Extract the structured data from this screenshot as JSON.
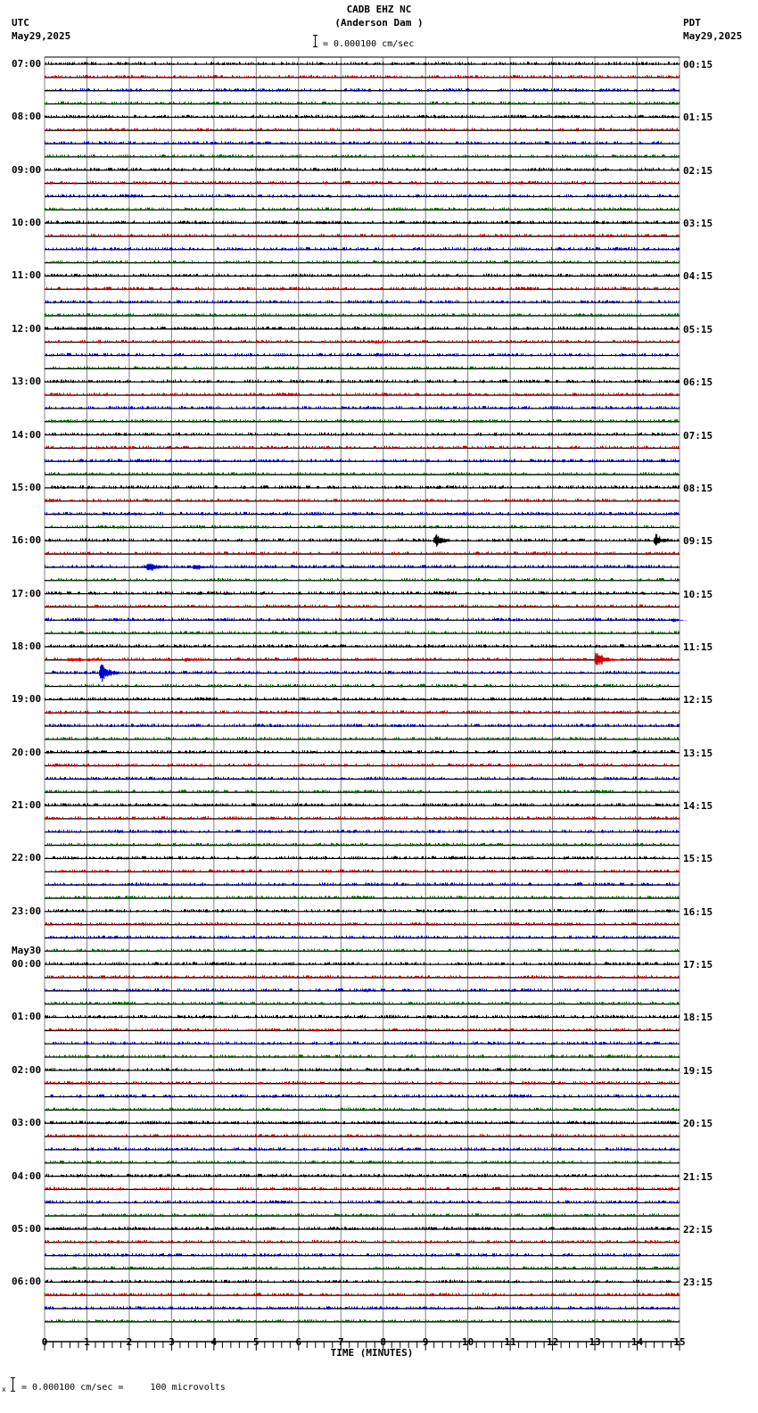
{
  "header": {
    "station": "CADB EHZ NC",
    "location": "(Anderson Dam )",
    "scale_text": "= 0.000100 cm/sec",
    "left_tz": "UTC",
    "left_date": "May29,2025",
    "right_tz": "PDT",
    "right_date": "May29,2025"
  },
  "footer": {
    "scale_text": "= 0.000100 cm/sec =     100 microvolts",
    "prefix": "x"
  },
  "colors": {
    "trace_cycle": [
      "#000000",
      "#cc0000",
      "#0000cc",
      "#006600"
    ],
    "grid": "#808080",
    "baseline": "#000000"
  },
  "chart_data": {
    "type": "line",
    "title": "CADB EHZ NC (Anderson Dam ) helicorder",
    "xlabel": "TIME (MINUTES)",
    "ylabel": "",
    "xlim": [
      0,
      15
    ],
    "x_ticks": [
      "0",
      "1",
      "2",
      "3",
      "4",
      "5",
      "6",
      "7",
      "8",
      "9",
      "10",
      "11",
      "12",
      "13",
      "14",
      "15"
    ],
    "grid": true,
    "traces_per_hour": 4,
    "trace_count": 96,
    "trace_minutes": 15,
    "left_labels": [
      {
        "row": 0,
        "text": "07:00"
      },
      {
        "row": 4,
        "text": "08:00"
      },
      {
        "row": 8,
        "text": "09:00"
      },
      {
        "row": 12,
        "text": "10:00"
      },
      {
        "row": 16,
        "text": "11:00"
      },
      {
        "row": 20,
        "text": "12:00"
      },
      {
        "row": 24,
        "text": "13:00"
      },
      {
        "row": 28,
        "text": "14:00"
      },
      {
        "row": 32,
        "text": "15:00"
      },
      {
        "row": 36,
        "text": "16:00"
      },
      {
        "row": 40,
        "text": "17:00"
      },
      {
        "row": 44,
        "text": "18:00"
      },
      {
        "row": 48,
        "text": "19:00"
      },
      {
        "row": 52,
        "text": "20:00"
      },
      {
        "row": 56,
        "text": "21:00"
      },
      {
        "row": 60,
        "text": "22:00"
      },
      {
        "row": 64,
        "text": "23:00"
      },
      {
        "row": 68,
        "text": "00:00",
        "date": "May30"
      },
      {
        "row": 72,
        "text": "01:00"
      },
      {
        "row": 76,
        "text": "02:00"
      },
      {
        "row": 80,
        "text": "03:00"
      },
      {
        "row": 84,
        "text": "04:00"
      },
      {
        "row": 88,
        "text": "05:00"
      },
      {
        "row": 92,
        "text": "06:00"
      }
    ],
    "right_labels": [
      {
        "row": 0,
        "text": "00:15"
      },
      {
        "row": 4,
        "text": "01:15"
      },
      {
        "row": 8,
        "text": "02:15"
      },
      {
        "row": 12,
        "text": "03:15"
      },
      {
        "row": 16,
        "text": "04:15"
      },
      {
        "row": 20,
        "text": "05:15"
      },
      {
        "row": 24,
        "text": "06:15"
      },
      {
        "row": 28,
        "text": "07:15"
      },
      {
        "row": 32,
        "text": "08:15"
      },
      {
        "row": 36,
        "text": "09:15"
      },
      {
        "row": 40,
        "text": "10:15"
      },
      {
        "row": 44,
        "text": "11:15"
      },
      {
        "row": 48,
        "text": "12:15"
      },
      {
        "row": 52,
        "text": "13:15"
      },
      {
        "row": 56,
        "text": "14:15"
      },
      {
        "row": 60,
        "text": "15:15"
      },
      {
        "row": 64,
        "text": "16:15"
      },
      {
        "row": 68,
        "text": "17:15"
      },
      {
        "row": 72,
        "text": "18:15"
      },
      {
        "row": 76,
        "text": "19:15"
      },
      {
        "row": 80,
        "text": "20:15"
      },
      {
        "row": 84,
        "text": "21:15"
      },
      {
        "row": 88,
        "text": "22:15"
      },
      {
        "row": 92,
        "text": "23:15"
      }
    ],
    "events": [
      {
        "row": 21,
        "minute": 7.8,
        "amplitude": 3,
        "duration": 0.5
      },
      {
        "row": 36,
        "minute": 9.2,
        "amplitude": 12,
        "duration": 0.5
      },
      {
        "row": 36,
        "minute": 10.6,
        "amplitude": 3,
        "duration": 0.3
      },
      {
        "row": 36,
        "minute": 14.4,
        "amplitude": 11,
        "duration": 0.5
      },
      {
        "row": 38,
        "minute": 2.4,
        "amplitude": 7,
        "duration": 0.8
      },
      {
        "row": 38,
        "minute": 3.5,
        "amplitude": 5,
        "duration": 0.7
      },
      {
        "row": 40,
        "minute": 4.2,
        "amplitude": 3,
        "duration": 0.6
      },
      {
        "row": 42,
        "minute": 14.8,
        "amplitude": 4,
        "duration": 0.4
      },
      {
        "row": 45,
        "minute": 0.5,
        "amplitude": 3,
        "duration": 2.8
      },
      {
        "row": 45,
        "minute": 3.3,
        "amplitude": 4,
        "duration": 0.6
      },
      {
        "row": 45,
        "minute": 13.0,
        "amplitude": 14,
        "duration": 0.6
      },
      {
        "row": 46,
        "minute": 1.3,
        "amplitude": 14,
        "duration": 0.6
      },
      {
        "row": 70,
        "minute": 7.5,
        "amplitude": 3,
        "duration": 0.6
      },
      {
        "row": 88,
        "minute": 3.0,
        "amplitude": 5,
        "duration": 0.1
      }
    ]
  }
}
